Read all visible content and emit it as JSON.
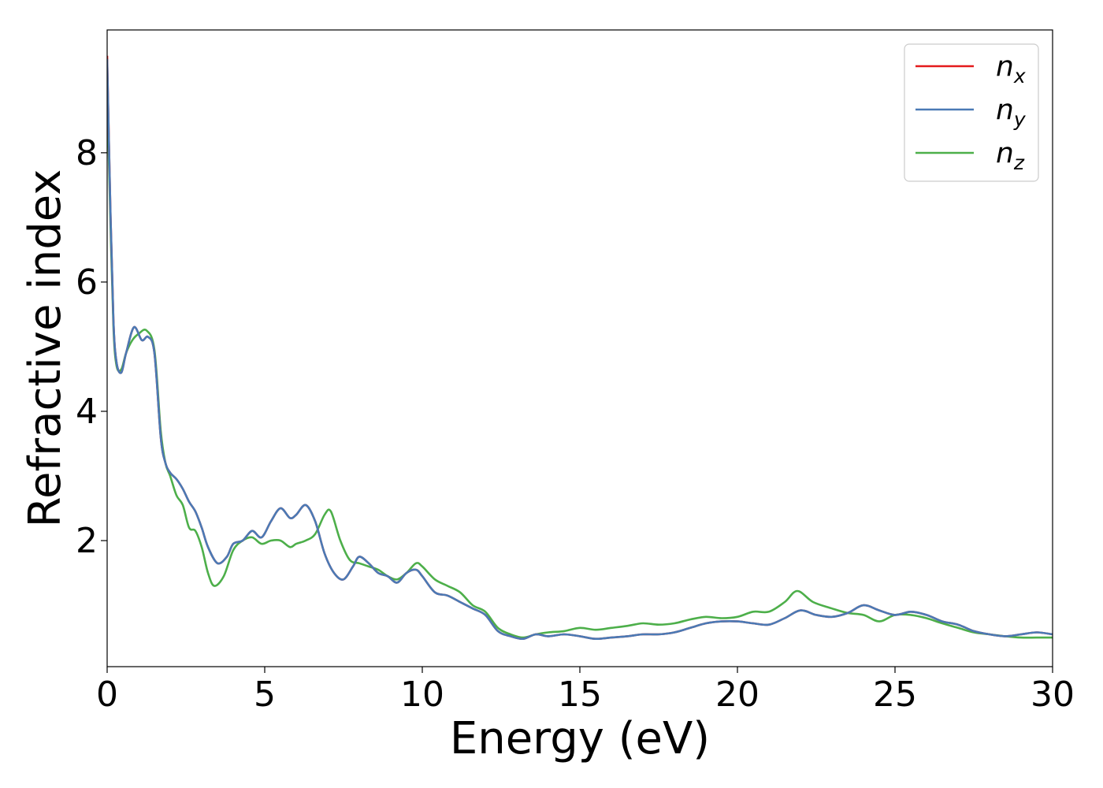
{
  "chart_data": {
    "type": "line",
    "title": "",
    "xlabel": "Energy (eV)",
    "ylabel": "Refractive index",
    "xlim": [
      0,
      30
    ],
    "ylim": [
      0.05,
      9.9
    ],
    "xticks": [
      0,
      5,
      10,
      15,
      20,
      25,
      30
    ],
    "yticks": [
      2,
      4,
      6,
      8
    ],
    "grid": false,
    "legend_position": "top-right",
    "series": [
      {
        "name": "n_x",
        "label_base": "n",
        "label_sub": "x",
        "color": "#e41a1c",
        "x": [
          0,
          0.1,
          0.2,
          0.3,
          0.45,
          0.6,
          0.85,
          1.1,
          1.3,
          1.5,
          1.7,
          1.85,
          2.0,
          2.2,
          2.4,
          2.6,
          2.8,
          3.0,
          3.2,
          3.5,
          3.8,
          4.0,
          4.3,
          4.6,
          4.9,
          5.2,
          5.5,
          5.8,
          6.0,
          6.3,
          6.6,
          6.9,
          7.2,
          7.5,
          7.8,
          8.0,
          8.3,
          8.6,
          8.9,
          9.2,
          9.5,
          9.8,
          10.0,
          10.4,
          10.8,
          11.2,
          11.6,
          12.0,
          12.4,
          12.8,
          13.2,
          13.6,
          14.0,
          14.5,
          15.0,
          15.5,
          16.0,
          16.5,
          17.0,
          17.5,
          18.0,
          18.5,
          19.0,
          19.5,
          20.0,
          20.5,
          21.0,
          21.5,
          22.0,
          22.5,
          23.0,
          23.5,
          24.0,
          24.5,
          25.0,
          25.5,
          26.0,
          26.5,
          27.0,
          27.5,
          28.0,
          28.5,
          29.0,
          29.5,
          30.0
        ],
        "y": [
          9.5,
          7.2,
          5.4,
          4.75,
          4.6,
          4.9,
          5.3,
          5.1,
          5.15,
          4.9,
          3.6,
          3.2,
          3.05,
          2.95,
          2.8,
          2.6,
          2.45,
          2.2,
          1.9,
          1.65,
          1.75,
          1.95,
          2.0,
          2.15,
          2.05,
          2.3,
          2.5,
          2.35,
          2.4,
          2.55,
          2.3,
          1.8,
          1.5,
          1.4,
          1.6,
          1.75,
          1.65,
          1.5,
          1.45,
          1.35,
          1.5,
          1.55,
          1.45,
          1.2,
          1.15,
          1.05,
          0.95,
          0.85,
          0.6,
          0.52,
          0.48,
          0.55,
          0.52,
          0.55,
          0.52,
          0.48,
          0.5,
          0.52,
          0.55,
          0.55,
          0.58,
          0.65,
          0.72,
          0.75,
          0.75,
          0.72,
          0.7,
          0.8,
          0.92,
          0.85,
          0.82,
          0.88,
          1.0,
          0.92,
          0.85,
          0.9,
          0.85,
          0.75,
          0.7,
          0.6,
          0.55,
          0.52,
          0.55,
          0.58,
          0.55
        ]
      },
      {
        "name": "n_y",
        "label_base": "n",
        "label_sub": "y",
        "color": "#4a7ab5",
        "x": [
          0,
          0.1,
          0.2,
          0.3,
          0.45,
          0.6,
          0.85,
          1.1,
          1.3,
          1.5,
          1.7,
          1.85,
          2.0,
          2.2,
          2.4,
          2.6,
          2.8,
          3.0,
          3.2,
          3.5,
          3.8,
          4.0,
          4.3,
          4.6,
          4.9,
          5.2,
          5.5,
          5.8,
          6.0,
          6.3,
          6.6,
          6.9,
          7.2,
          7.5,
          7.8,
          8.0,
          8.3,
          8.6,
          8.9,
          9.2,
          9.5,
          9.8,
          10.0,
          10.4,
          10.8,
          11.2,
          11.6,
          12.0,
          12.4,
          12.8,
          13.2,
          13.6,
          14.0,
          14.5,
          15.0,
          15.5,
          16.0,
          16.5,
          17.0,
          17.5,
          18.0,
          18.5,
          19.0,
          19.5,
          20.0,
          20.5,
          21.0,
          21.5,
          22.0,
          22.5,
          23.0,
          23.5,
          24.0,
          24.5,
          25.0,
          25.5,
          26.0,
          26.5,
          27.0,
          27.5,
          28.0,
          28.5,
          29.0,
          29.5,
          30.0
        ],
        "y": [
          9.45,
          7.2,
          5.4,
          4.75,
          4.6,
          4.9,
          5.3,
          5.1,
          5.15,
          4.9,
          3.6,
          3.2,
          3.05,
          2.95,
          2.8,
          2.6,
          2.45,
          2.2,
          1.9,
          1.65,
          1.75,
          1.95,
          2.0,
          2.15,
          2.05,
          2.3,
          2.5,
          2.35,
          2.4,
          2.55,
          2.3,
          1.8,
          1.5,
          1.4,
          1.6,
          1.75,
          1.65,
          1.5,
          1.45,
          1.35,
          1.5,
          1.55,
          1.45,
          1.2,
          1.15,
          1.05,
          0.95,
          0.85,
          0.6,
          0.52,
          0.48,
          0.55,
          0.52,
          0.55,
          0.52,
          0.48,
          0.5,
          0.52,
          0.55,
          0.55,
          0.58,
          0.65,
          0.72,
          0.75,
          0.75,
          0.72,
          0.7,
          0.8,
          0.92,
          0.85,
          0.82,
          0.88,
          1.0,
          0.92,
          0.85,
          0.9,
          0.85,
          0.75,
          0.7,
          0.6,
          0.55,
          0.52,
          0.55,
          0.58,
          0.55
        ]
      },
      {
        "name": "n_z",
        "label_base": "n",
        "label_sub": "z",
        "color": "#4daf4a",
        "x": [
          0,
          0.1,
          0.2,
          0.3,
          0.45,
          0.6,
          0.8,
          1.0,
          1.25,
          1.5,
          1.7,
          1.85,
          2.0,
          2.2,
          2.4,
          2.6,
          2.8,
          3.0,
          3.2,
          3.4,
          3.7,
          4.0,
          4.3,
          4.6,
          4.9,
          5.2,
          5.5,
          5.8,
          6.0,
          6.3,
          6.6,
          6.9,
          7.1,
          7.4,
          7.7,
          8.0,
          8.3,
          8.6,
          8.9,
          9.2,
          9.5,
          9.8,
          10.0,
          10.4,
          10.8,
          11.2,
          11.6,
          12.0,
          12.4,
          12.8,
          13.2,
          13.6,
          14.0,
          14.5,
          15.0,
          15.5,
          16.0,
          16.5,
          17.0,
          17.5,
          18.0,
          18.5,
          19.0,
          19.5,
          20.0,
          20.5,
          21.0,
          21.5,
          21.9,
          22.4,
          23.0,
          23.5,
          24.0,
          24.5,
          25.0,
          25.5,
          26.0,
          26.5,
          27.0,
          27.5,
          28.0,
          28.5,
          29.0,
          29.5,
          30.0
        ],
        "y": [
          9.0,
          7.0,
          5.3,
          4.7,
          4.65,
          4.9,
          5.1,
          5.2,
          5.25,
          4.95,
          3.7,
          3.2,
          3.0,
          2.7,
          2.55,
          2.2,
          2.15,
          1.9,
          1.5,
          1.3,
          1.45,
          1.85,
          2.0,
          2.05,
          1.95,
          2.0,
          2.0,
          1.9,
          1.95,
          2.0,
          2.1,
          2.4,
          2.45,
          2.0,
          1.7,
          1.65,
          1.6,
          1.55,
          1.45,
          1.4,
          1.5,
          1.65,
          1.6,
          1.4,
          1.3,
          1.2,
          1.0,
          0.9,
          0.65,
          0.55,
          0.5,
          0.55,
          0.58,
          0.6,
          0.65,
          0.62,
          0.65,
          0.68,
          0.72,
          0.7,
          0.72,
          0.78,
          0.82,
          0.8,
          0.82,
          0.9,
          0.9,
          1.05,
          1.22,
          1.05,
          0.95,
          0.88,
          0.85,
          0.75,
          0.85,
          0.85,
          0.8,
          0.72,
          0.65,
          0.58,
          0.55,
          0.52,
          0.5,
          0.5,
          0.5
        ]
      }
    ]
  }
}
